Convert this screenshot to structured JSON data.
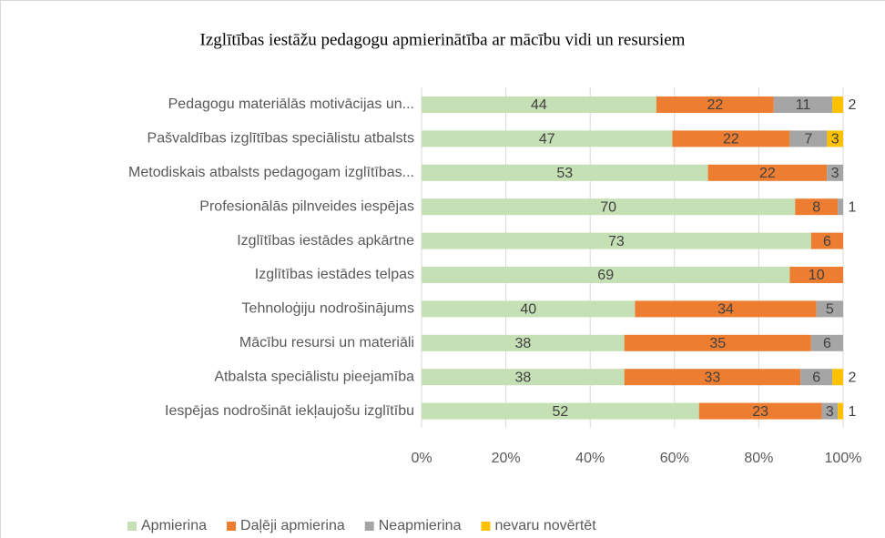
{
  "chart_data": {
    "type": "bar",
    "orientation": "horizontal",
    "stacking": "percent",
    "title": "Izglītības iestāžu pedagogu apmierinātība ar mācību vidi un resursiem",
    "categories": [
      "Pedagogu materiālās motivācijas un...",
      "Pašvaldības izglītības speciālistu atbalsts",
      "Metodiskais atbalsts pedagogam izglītības...",
      "Profesionālās pilnveides iespējas",
      "Izglītības iestādes apkārtne",
      "Izglītības iestādes telpas",
      "Tehnoloģiju nodrošinājums",
      "Mācību resursi un materiāli",
      "Atbalsta speciālistu pieejamība",
      "Iespējas nodrošināt iekļaujošu izglītību"
    ],
    "series": [
      {
        "name": "Apmierina",
        "color": "#c5e0b4",
        "values": [
          44,
          47,
          53,
          70,
          73,
          69,
          40,
          38,
          38,
          52
        ]
      },
      {
        "name": "Daļēji apmierina",
        "color": "#ed7d31",
        "values": [
          22,
          22,
          22,
          8,
          6,
          10,
          34,
          35,
          33,
          23
        ]
      },
      {
        "name": "Neapmierina",
        "color": "#a5a5a5",
        "values": [
          11,
          7,
          3,
          1,
          null,
          null,
          5,
          6,
          6,
          3
        ]
      },
      {
        "name": "nevaru novērtēt",
        "color": "#ffc000",
        "values": [
          2,
          3,
          null,
          null,
          null,
          null,
          null,
          null,
          2,
          1
        ]
      }
    ],
    "xlim": [
      0,
      100
    ],
    "xticks": [
      {
        "value": 0,
        "label": "0%"
      },
      {
        "value": 20,
        "label": "20%"
      },
      {
        "value": 40,
        "label": "40%"
      },
      {
        "value": 60,
        "label": "60%"
      },
      {
        "value": 80,
        "label": "80%"
      },
      {
        "value": 100,
        "label": "100%"
      }
    ],
    "grid": true,
    "legend": "bottom"
  }
}
